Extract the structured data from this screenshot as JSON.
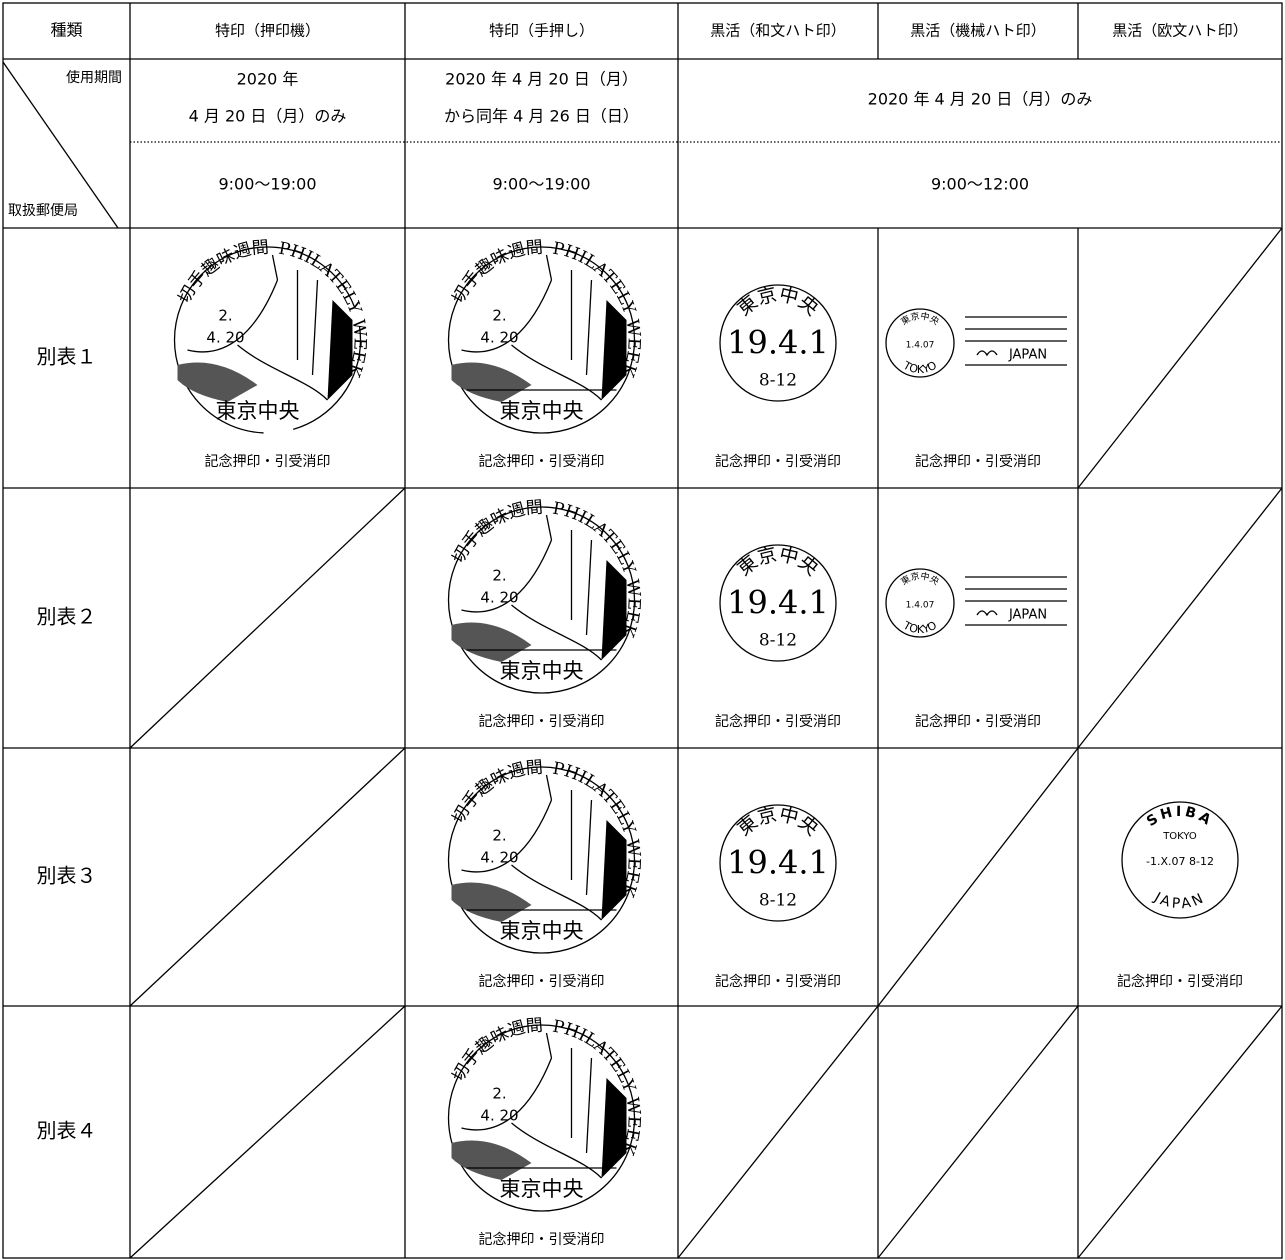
{
  "header": {
    "corner": "種類",
    "columns": [
      "特印（押印機）",
      "特印（手押し）",
      "黒活（和文ハト印）",
      "黒活（機械ハト印）",
      "黒活（欧文ハト印）"
    ]
  },
  "period": {
    "corner_top": "使用期間",
    "corner_bottom": "取扱郵便局",
    "dates": [
      [
        "2020 年",
        "4 月 20 日（月）のみ"
      ],
      [
        "2020 年 4 月 20 日（月）",
        "から同年 4 月 26 日（日）"
      ],
      [
        "2020 年 4 月 20 日（月）のみ"
      ]
    ],
    "hours": [
      "9:00〜19:00",
      "9:00〜19:00",
      "9:00〜12:00"
    ]
  },
  "rows": [
    {
      "label": "別表１",
      "cells": [
        {
          "arc_ja": "切手趣味週間",
          "arc_en": "PHILATELY WEEK",
          "date": [
            "2.",
            "4. 20"
          ],
          "office": "東京中央",
          "caption": "記念押印・引受消印"
        },
        {
          "arc_ja": "切手趣味週間",
          "arc_en": "PHILATELY WEEK",
          "date": [
            "2.",
            "4. 20"
          ],
          "office": "東京中央",
          "caption": "記念押印・引受消印"
        },
        {
          "office": "東京中央",
          "date": "19.4.1",
          "time": "8-12",
          "caption": "記念押印・引受消印"
        },
        {
          "office": "東京中央",
          "date": "1.4.07",
          "city": "TOKYO",
          "country": "JAPAN",
          "caption": "記念押印・引受消印"
        },
        null
      ]
    },
    {
      "label": "別表２",
      "cells": [
        null,
        {
          "arc_ja": "切手趣味週間",
          "arc_en": "PHILATELY WEEK",
          "date": [
            "2.",
            "4. 20"
          ],
          "office": "東京中央",
          "caption": "記念押印・引受消印"
        },
        {
          "office": "東京中央",
          "date": "19.4.1",
          "time": "8-12",
          "caption": "記念押印・引受消印"
        },
        {
          "office": "東京中央",
          "date": "1.4.07",
          "city": "TOKYO",
          "country": "JAPAN",
          "caption": "記念押印・引受消印"
        },
        null
      ]
    },
    {
      "label": "別表３",
      "cells": [
        null,
        {
          "arc_ja": "切手趣味週間",
          "arc_en": "PHILATELY WEEK",
          "date": [
            "2.",
            "4. 20"
          ],
          "office": "東京中央",
          "caption": "記念押印・引受消印"
        },
        {
          "office": "東京中央",
          "date": "19.4.1",
          "time": "8-12",
          "caption": "記念押印・引受消印"
        },
        null,
        {
          "office": "SHIBA",
          "city": "TOKYO",
          "date": "-1.X.07 8-12",
          "country": "JAPAN",
          "caption": "記念押印・引受消印"
        }
      ]
    },
    {
      "label": "別表４",
      "cells": [
        null,
        {
          "arc_ja": "切手趣味週間",
          "arc_en": "PHILATELY WEEK",
          "date": [
            "2.",
            "4. 20"
          ],
          "office": "東京中央",
          "caption": "記念押印・引受消印"
        },
        null,
        null,
        null
      ]
    }
  ]
}
